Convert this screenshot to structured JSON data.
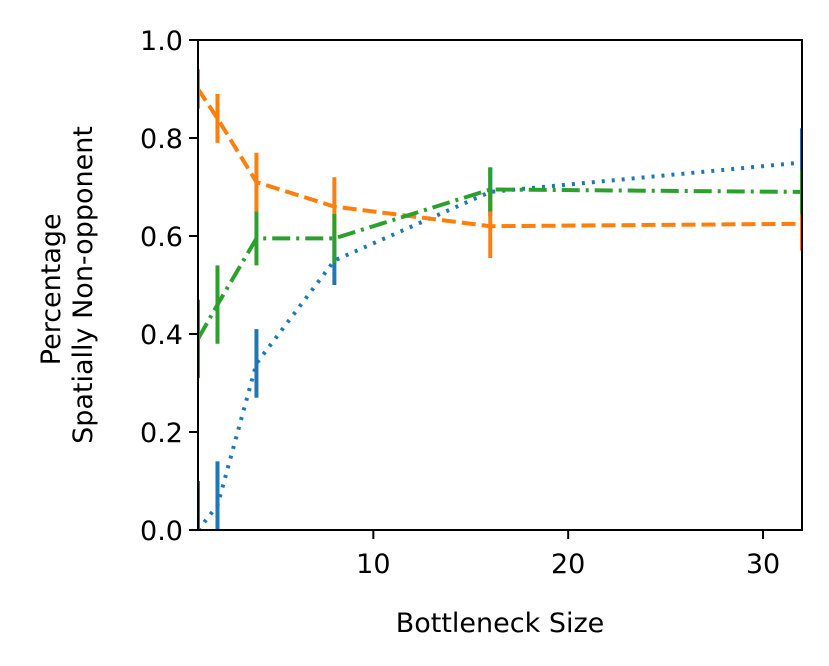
{
  "chart_data": {
    "type": "line",
    "xlabel": "Bottleneck Size",
    "ylabel": [
      "Percentage",
      "Spatially Non-opponent"
    ],
    "xlim": [
      1,
      32
    ],
    "ylim": [
      0,
      1
    ],
    "xticks": [
      10,
      20,
      30
    ],
    "yticks": [
      0.0,
      0.2,
      0.4,
      0.6,
      0.8,
      1.0
    ],
    "xtick_labels": [
      "10",
      "20",
      "30"
    ],
    "ytick_labels": [
      "0.0",
      "0.2",
      "0.4",
      "0.6",
      "0.8",
      "1.0"
    ],
    "grid": false,
    "legend": "none",
    "series": [
      {
        "color": "#1f77b4",
        "linestyle": "dotted",
        "x": [
          1,
          2,
          4,
          8,
          16,
          32
        ],
        "y": [
          0.0,
          0.05,
          0.34,
          0.55,
          0.69,
          0.75
        ],
        "err": [
          0.1,
          0.09,
          0.07,
          0.05,
          0.05,
          0.07
        ]
      },
      {
        "color": "#ff7f0e",
        "linestyle": "dashed",
        "x": [
          1,
          2,
          4,
          8,
          16,
          32
        ],
        "y": [
          0.9,
          0.84,
          0.71,
          0.66,
          0.62,
          0.625
        ],
        "err": [
          0.04,
          0.05,
          0.06,
          0.06,
          0.065,
          0.055
        ]
      },
      {
        "color": "#2ca02c",
        "linestyle": "dashdot",
        "x": [
          1,
          2,
          4,
          8,
          16,
          32
        ],
        "y": [
          0.39,
          0.46,
          0.595,
          0.595,
          0.695,
          0.69
        ],
        "err": [
          0.08,
          0.08,
          0.055,
          0.05,
          0.045,
          0.045
        ]
      }
    ]
  }
}
